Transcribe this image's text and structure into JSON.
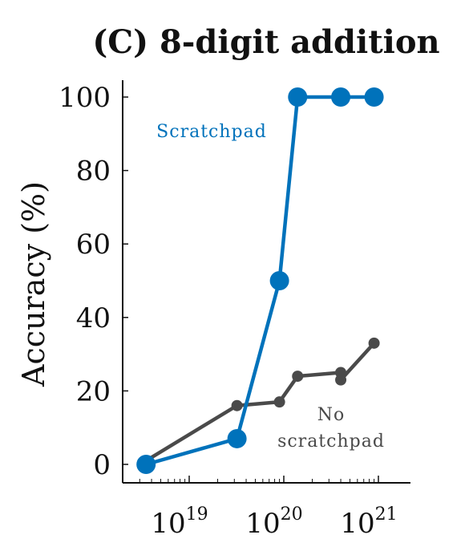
{
  "chart_data": {
    "type": "line",
    "title": "(C) 8-digit addition",
    "ylabel": "Accuracy (%)",
    "xlabel": "",
    "xscale": "log",
    "xlim": [
      2e+18,
      2e+21
    ],
    "ylim": [
      -5,
      105
    ],
    "yticks": [
      0,
      20,
      40,
      60,
      80,
      100
    ],
    "yticklabels": [
      "0",
      "20",
      "40",
      "60",
      "80",
      "100"
    ],
    "xticks": [
      {
        "value": 1e+19,
        "base": "10",
        "exp": "19"
      },
      {
        "value": 1e+20,
        "base": "10",
        "exp": "20"
      },
      {
        "value": 1e+21,
        "base": "10",
        "exp": "21"
      }
    ],
    "minor_xticks": [
      3e+18,
      4e+18,
      5e+18,
      6e+18,
      7e+18,
      8e+18,
      9e+18,
      2e+19,
      3e+19,
      4e+19,
      5e+19,
      6e+19,
      7e+19,
      8e+19,
      9e+19,
      2e+20,
      3e+20,
      4e+20,
      5e+20,
      6e+20,
      7e+20,
      8e+20,
      9e+20
    ],
    "series": [
      {
        "name": "No scratchpad",
        "color": "#4a4a4a",
        "x": [
          3.5e+18,
          3.2e+19,
          9e+19,
          1.4e+20,
          4e+20,
          4e+20,
          9e+20
        ],
        "y": [
          1,
          16,
          17,
          24,
          25,
          23,
          33
        ]
      },
      {
        "name": "Scratchpad",
        "color": "#0072bb",
        "x": [
          3.5e+18,
          3.2e+19,
          9e+19,
          1.4e+20,
          4e+20,
          9e+20
        ],
        "y": [
          0,
          7,
          50,
          100,
          100,
          100
        ]
      }
    ],
    "annotations": [
      {
        "text": "Scratchpad",
        "series": "Scratchpad"
      },
      {
        "lines": [
          "No",
          "scratchpad"
        ],
        "series": "No scratchpad"
      }
    ],
    "grid": false,
    "legend": "none"
  }
}
